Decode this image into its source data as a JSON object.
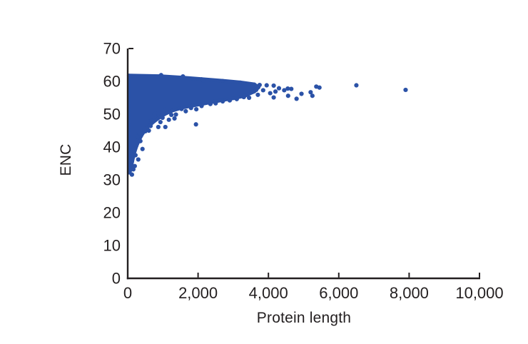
{
  "chart_data": {
    "type": "scatter",
    "title": "",
    "xlabel": "Protein length",
    "ylabel": "ENC",
    "xlim": [
      0,
      10000
    ],
    "ylim": [
      0,
      70
    ],
    "grid": false,
    "legend": null,
    "point_color": "#2b52a7",
    "axis_color": "#231f20",
    "x_ticks": [
      {
        "value": 0,
        "label": "0",
        "tick": false
      },
      {
        "value": 2000,
        "label": "2,000",
        "tick": true
      },
      {
        "value": 4000,
        "label": "4,000",
        "tick": true
      },
      {
        "value": 6000,
        "label": "6,000",
        "tick": true
      },
      {
        "value": 8000,
        "label": "8,000",
        "tick": true
      },
      {
        "value": 10000,
        "label": "10,000",
        "tick": true
      }
    ],
    "y_ticks": [
      {
        "value": 0,
        "label": "0",
        "tick": false
      },
      {
        "value": 10,
        "label": "10",
        "tick": false
      },
      {
        "value": 20,
        "label": "20",
        "tick": false
      },
      {
        "value": 30,
        "label": "30",
        "tick": false
      },
      {
        "value": 40,
        "label": "40",
        "tick": false
      },
      {
        "value": 50,
        "label": "50",
        "tick": false
      },
      {
        "value": 60,
        "label": "60",
        "tick": false
      },
      {
        "value": 70,
        "label": "70",
        "tick": true
      }
    ],
    "dense_cluster_envelope": [
      [
        30,
        61.8
      ],
      [
        900,
        61.6
      ],
      [
        1500,
        61.2
      ],
      [
        2100,
        60.7
      ],
      [
        2700,
        60.2
      ],
      [
        3200,
        59.7
      ],
      [
        3600,
        59.1
      ],
      [
        3720,
        58.2
      ],
      [
        3600,
        56.9
      ],
      [
        3350,
        55.7
      ],
      [
        3050,
        54.9
      ],
      [
        2750,
        54.4
      ],
      [
        2450,
        53.8
      ],
      [
        2150,
        53.2
      ],
      [
        1850,
        52.6
      ],
      [
        1550,
        52.0
      ],
      [
        1250,
        51.0
      ],
      [
        1050,
        50.0
      ],
      [
        850,
        48.6
      ],
      [
        680,
        47.2
      ],
      [
        540,
        45.7
      ],
      [
        430,
        44.2
      ],
      [
        330,
        42.3
      ],
      [
        250,
        40.3
      ],
      [
        180,
        38.0
      ],
      [
        130,
        35.6
      ],
      [
        90,
        33.4
      ],
      [
        55,
        32.2
      ],
      [
        30,
        32.2
      ]
    ],
    "points": [
      [
        120,
        31.6
      ],
      [
        160,
        33.2
      ],
      [
        200,
        34.2
      ],
      [
        120,
        36.3
      ],
      [
        300,
        36.2
      ],
      [
        220,
        37.5
      ],
      [
        420,
        39.4
      ],
      [
        120,
        40.1
      ],
      [
        360,
        41.8
      ],
      [
        280,
        43.1
      ],
      [
        320,
        44.4
      ],
      [
        500,
        44.8
      ],
      [
        600,
        45.0
      ],
      [
        470,
        45.5
      ],
      [
        650,
        46.4
      ],
      [
        870,
        46.1
      ],
      [
        1070,
        46.1
      ],
      [
        630,
        47.8
      ],
      [
        670,
        48.0
      ],
      [
        930,
        47.6
      ],
      [
        1170,
        48.3
      ],
      [
        770,
        50.0
      ],
      [
        990,
        48.9
      ],
      [
        1240,
        49.8
      ],
      [
        870,
        50.4
      ],
      [
        1070,
        51.4
      ],
      [
        1330,
        48.7
      ],
      [
        1370,
        49.9
      ],
      [
        1530,
        51.6
      ],
      [
        1650,
        50.9
      ],
      [
        1800,
        51.9
      ],
      [
        1950,
        51.5
      ],
      [
        2100,
        52.5
      ],
      [
        2350,
        53.1
      ],
      [
        1940,
        46.9
      ],
      [
        950,
        61.9
      ],
      [
        1570,
        61.5
      ],
      [
        2150,
        60.3
      ],
      [
        2500,
        53.3
      ],
      [
        2700,
        53.9
      ],
      [
        2900,
        54.2
      ],
      [
        3100,
        54.6
      ],
      [
        3300,
        55.2
      ],
      [
        3450,
        55.0
      ],
      [
        3550,
        56.8
      ],
      [
        3650,
        57.4
      ],
      [
        3700,
        55.9
      ],
      [
        3750,
        58.9
      ],
      [
        3850,
        57.3
      ],
      [
        3950,
        58.8
      ],
      [
        4050,
        56.4
      ],
      [
        4150,
        55.1
      ],
      [
        4150,
        58.7
      ],
      [
        4200,
        56.9
      ],
      [
        4300,
        57.9
      ],
      [
        4450,
        57.3
      ],
      [
        4550,
        57.8
      ],
      [
        4650,
        57.7
      ],
      [
        4560,
        55.6
      ],
      [
        4800,
        54.7
      ],
      [
        4940,
        56.2
      ],
      [
        5200,
        56.7
      ],
      [
        5250,
        55.6
      ],
      [
        5360,
        58.4
      ],
      [
        5450,
        58.1
      ],
      [
        6500,
        58.8
      ],
      [
        7900,
        57.4
      ]
    ]
  }
}
